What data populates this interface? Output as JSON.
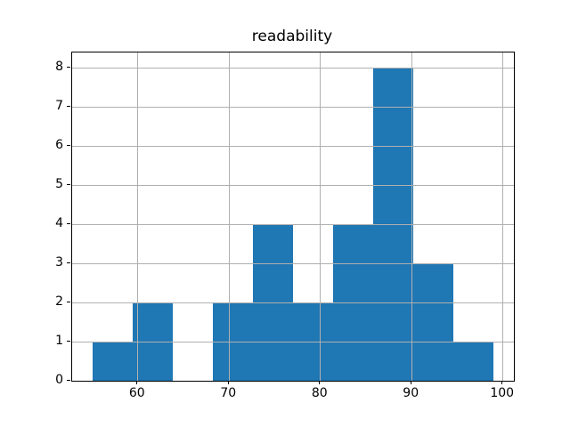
{
  "figure": {
    "background_color": "#ffffff",
    "text_color": "#000000"
  },
  "chart_data": {
    "type": "bar",
    "subtype": "histogram",
    "title": "readability",
    "xlabel": "",
    "ylabel": "",
    "bin_edges": [
      55.0,
      59.4,
      63.8,
      68.2,
      72.6,
      77.0,
      81.4,
      85.8,
      90.2,
      94.6,
      99.0
    ],
    "counts": [
      1,
      2,
      0,
      2,
      4,
      2,
      4,
      8,
      3,
      1
    ],
    "total_count": 27,
    "xlim": [
      52.8,
      101.2
    ],
    "ylim": [
      0,
      8.4
    ],
    "x_ticks": [
      60,
      70,
      80,
      90,
      100
    ],
    "x_tick_labels": [
      "60",
      "70",
      "80",
      "90",
      "100"
    ],
    "y_ticks": [
      0,
      1,
      2,
      3,
      4,
      5,
      6,
      7,
      8
    ],
    "y_tick_labels": [
      "0",
      "1",
      "2",
      "3",
      "4",
      "5",
      "6",
      "7",
      "8"
    ],
    "grid": true,
    "grid_over_bars": true,
    "legend": "none",
    "bar_color": "#1f77b4",
    "grid_color": "#b0b0b0",
    "spine_color": "#000000"
  }
}
